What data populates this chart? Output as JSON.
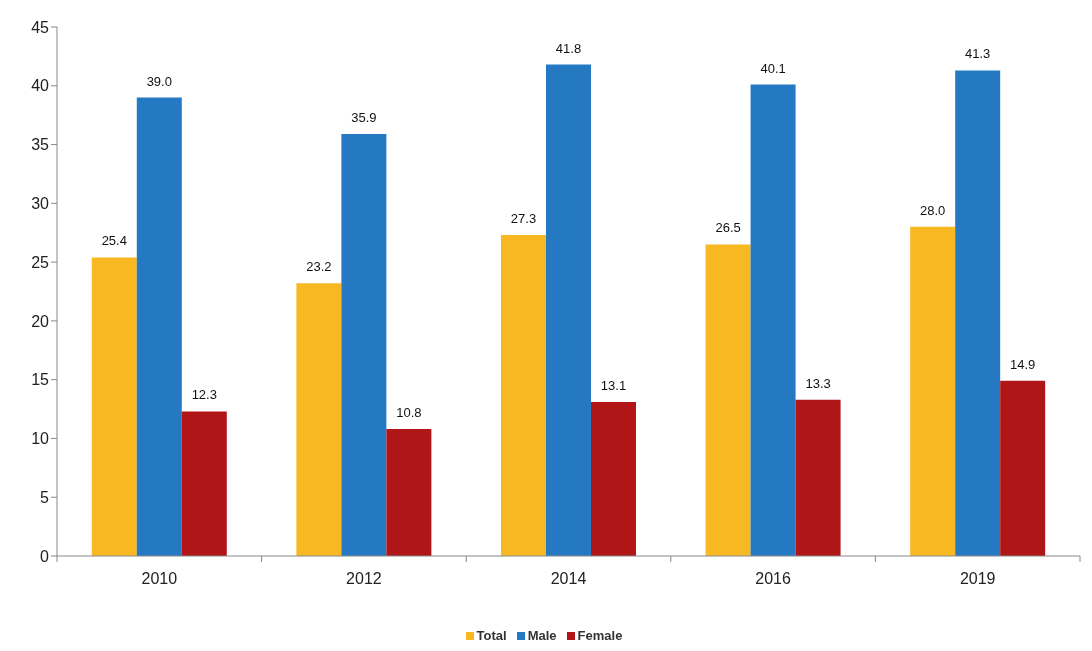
{
  "chart_data": {
    "type": "bar",
    "categories": [
      "2010",
      "2012",
      "2014",
      "2016",
      "2019"
    ],
    "series": [
      {
        "name": "Total",
        "color": "#f8b822",
        "values": [
          25.4,
          23.2,
          27.3,
          26.5,
          28.0
        ],
        "value_labels": [
          "25.4",
          "23.2",
          "27.3",
          "26.5",
          "28.0"
        ]
      },
      {
        "name": "Male",
        "color": "#2479c2",
        "values": [
          39.0,
          35.9,
          41.8,
          40.1,
          41.3
        ],
        "value_labels": [
          "39.0",
          "35.9",
          "41.8",
          "40.1",
          "41.3"
        ]
      },
      {
        "name": "Female",
        "color": "#b01518",
        "values": [
          12.3,
          10.8,
          13.1,
          13.3,
          14.9
        ],
        "value_labels": [
          "12.3",
          "10.8",
          "13.1",
          "13.3",
          "14.9"
        ]
      }
    ],
    "ylim": [
      0,
      45
    ],
    "yticks": [
      0,
      5,
      10,
      15,
      20,
      25,
      30,
      35,
      40,
      45
    ],
    "grid": false,
    "legend": "bottom"
  }
}
